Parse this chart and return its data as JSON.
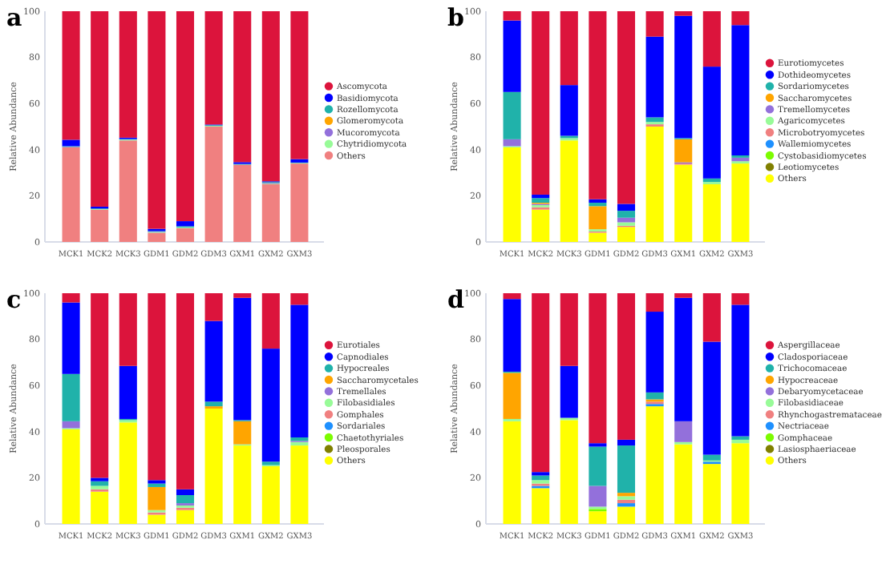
{
  "chart_data": [
    {
      "type": "bar",
      "title": "a",
      "ylabel": "Relative Abundance",
      "stacked": true,
      "legend": "right",
      "grid": false,
      "ylim": [
        0,
        100
      ],
      "yticks": [
        0,
        20,
        40,
        60,
        80,
        100
      ],
      "categories": [
        "MCK1",
        "MCK2",
        "MCK3",
        "GDM1",
        "GDM2",
        "GDM3",
        "GXM1",
        "GXM2",
        "GXM3"
      ],
      "series": [
        {
          "name": "Others",
          "color": "#f08080",
          "values": [
            41,
            14,
            44,
            4,
            6,
            50,
            33.5,
            25,
            34
          ]
        },
        {
          "name": "Chytridiomycota",
          "color": "#98fb98",
          "values": [
            0,
            0.2,
            0.3,
            0.2,
            0.3,
            0.3,
            0,
            0.3,
            0.2
          ]
        },
        {
          "name": "Mucoromycota",
          "color": "#9370db",
          "values": [
            0.2,
            0,
            0,
            0.2,
            0,
            0,
            0,
            0.4,
            0
          ]
        },
        {
          "name": "Glomeromycota",
          "color": "#ffa500",
          "values": [
            0,
            0,
            0,
            0,
            0,
            0,
            0,
            0,
            0
          ]
        },
        {
          "name": "Rozellomycota",
          "color": "#20b2aa",
          "values": [
            0.3,
            0.3,
            0.3,
            0.3,
            0.5,
            0.3,
            0.3,
            0.3,
            0.2
          ]
        },
        {
          "name": "Basidiomycota",
          "color": "#0000ff",
          "values": [
            2.8,
            0.8,
            0.6,
            1,
            2.2,
            0.3,
            0.8,
            0.3,
            1.5
          ]
        },
        {
          "name": "Ascomycota",
          "color": "#dc143c",
          "values": [
            55.7,
            84.7,
            54.8,
            94.3,
            91,
            49.1,
            65.4,
            73.7,
            64.1
          ]
        }
      ]
    },
    {
      "type": "bar",
      "title": "b",
      "ylabel": "Relative Abundance",
      "stacked": true,
      "legend": "right",
      "grid": false,
      "ylim": [
        0,
        100
      ],
      "yticks": [
        0,
        20,
        40,
        60,
        80,
        100
      ],
      "categories": [
        "MCK1",
        "MCK2",
        "MCK3",
        "GDM1",
        "GDM2",
        "GDM3",
        "GXM1",
        "GXM2",
        "GXM3"
      ],
      "series": [
        {
          "name": "Others",
          "color": "#ffff00",
          "values": [
            41,
            14,
            44,
            4,
            6.5,
            50,
            33.5,
            25,
            34
          ]
        },
        {
          "name": "Leotiomycetes",
          "color": "#808000",
          "values": [
            0,
            0,
            0,
            0,
            0,
            0,
            0,
            0,
            0
          ]
        },
        {
          "name": "Cystobasidiomycetes",
          "color": "#7cfc00",
          "values": [
            0,
            0,
            0,
            0,
            0,
            0,
            0,
            0,
            0
          ]
        },
        {
          "name": "Wallemiomycetes",
          "color": "#1e90ff",
          "values": [
            0,
            0,
            0,
            0,
            0,
            0,
            0,
            0,
            0
          ]
        },
        {
          "name": "Microbotryomycetes",
          "color": "#f08080",
          "values": [
            0,
            1,
            0,
            0.5,
            0.5,
            1,
            0.5,
            0,
            0
          ]
        },
        {
          "name": "Agaricomycetes",
          "color": "#98fb98",
          "values": [
            0.5,
            1,
            1,
            1,
            1.5,
            1,
            0,
            1,
            1
          ]
        },
        {
          "name": "Tremellomycetes",
          "color": "#9370db",
          "values": [
            3,
            0.5,
            0,
            0,
            2,
            0,
            0.5,
            0,
            1.5
          ]
        },
        {
          "name": "Saccharomycetes",
          "color": "#ffa500",
          "values": [
            0,
            0.5,
            0,
            10,
            0,
            0,
            10,
            0,
            0
          ]
        },
        {
          "name": "Sordariomycetes",
          "color": "#20b2aa",
          "values": [
            20.5,
            2,
            1,
            1.5,
            3,
            2,
            0.5,
            1.5,
            1
          ]
        },
        {
          "name": "Dothideomycetes",
          "color": "#0000ff",
          "values": [
            31,
            1.5,
            22,
            1.5,
            3,
            35,
            53,
            48.5,
            56.5
          ]
        },
        {
          "name": "Eurotiomycetes",
          "color": "#dc143c",
          "values": [
            4,
            79.5,
            32,
            81.5,
            83.5,
            11,
            2,
            24,
            6
          ]
        }
      ]
    },
    {
      "type": "bar",
      "title": "c",
      "ylabel": "Relative Abundance",
      "stacked": true,
      "legend": "right",
      "grid": false,
      "ylim": [
        0,
        100
      ],
      "yticks": [
        0,
        20,
        40,
        60,
        80,
        100
      ],
      "categories": [
        "MCK1",
        "MCK2",
        "MCK3",
        "GDM1",
        "GDM2",
        "GDM3",
        "GXM1",
        "GXM2",
        "GXM3"
      ],
      "series": [
        {
          "name": "Others",
          "color": "#ffff00",
          "values": [
            41,
            14,
            44,
            4,
            6,
            50,
            34,
            25,
            34
          ]
        },
        {
          "name": "Pleosporales",
          "color": "#808000",
          "values": [
            0,
            0,
            0,
            0,
            0,
            0,
            0,
            0,
            0
          ]
        },
        {
          "name": "Chaetothyriales",
          "color": "#7cfc00",
          "values": [
            0,
            0,
            0,
            0,
            0,
            0,
            0,
            0,
            0
          ]
        },
        {
          "name": "Sordariales",
          "color": "#1e90ff",
          "values": [
            0,
            0,
            0,
            0,
            0,
            0,
            0,
            0,
            0
          ]
        },
        {
          "name": "Gomphales",
          "color": "#f08080",
          "values": [
            0,
            1,
            0,
            1,
            1,
            0,
            0,
            0,
            0
          ]
        },
        {
          "name": "Filobasidiales",
          "color": "#98fb98",
          "values": [
            0.5,
            1.5,
            1,
            1,
            1,
            0,
            0.5,
            0.5,
            1.5
          ]
        },
        {
          "name": "Tremellales",
          "color": "#9370db",
          "values": [
            3,
            0,
            0,
            0,
            1,
            0,
            0,
            0,
            0.5
          ]
        },
        {
          "name": "Saccharomycetales",
          "color": "#ffa500",
          "values": [
            0,
            0,
            0,
            10,
            0,
            1,
            10,
            0,
            0
          ]
        },
        {
          "name": "Hypocreales",
          "color": "#20b2aa",
          "values": [
            20.5,
            2,
            0.5,
            1.5,
            3.5,
            2,
            0.5,
            1.5,
            1.5
          ]
        },
        {
          "name": "Capnodiales",
          "color": "#0000ff",
          "values": [
            31,
            1.5,
            23,
            1.5,
            2.5,
            35,
            53,
            49,
            57.5
          ]
        },
        {
          "name": "Eurotiales",
          "color": "#dc143c",
          "values": [
            4,
            80,
            31.5,
            81,
            85,
            12,
            2,
            24,
            5
          ]
        }
      ]
    },
    {
      "type": "bar",
      "title": "d",
      "ylabel": "Relative Abundance",
      "stacked": true,
      "legend": "right",
      "grid": false,
      "ylim": [
        0,
        100
      ],
      "yticks": [
        0,
        20,
        40,
        60,
        80,
        100
      ],
      "categories": [
        "MCK1",
        "MCK2",
        "MCK3",
        "GDM1",
        "GDM2",
        "GDM3",
        "GXM1",
        "GXM2",
        "GXM3"
      ],
      "series": [
        {
          "name": "Others",
          "color": "#ffff00",
          "values": [
            44.5,
            15.5,
            45,
            5.5,
            7.5,
            51,
            34.5,
            26,
            35
          ]
        },
        {
          "name": "Lasiosphaeriaceae",
          "color": "#808000",
          "values": [
            0,
            0,
            0,
            0,
            0,
            0,
            0,
            0,
            0
          ]
        },
        {
          "name": "Gomphaceae",
          "color": "#7cfc00",
          "values": [
            0,
            0,
            0,
            1,
            0,
            0,
            0,
            0,
            0
          ]
        },
        {
          "name": "Nectriaceae",
          "color": "#1e90ff",
          "values": [
            0,
            1,
            0,
            0,
            1.5,
            1,
            0,
            1,
            0
          ]
        },
        {
          "name": "Rhynchogastremataceae",
          "color": "#f08080",
          "values": [
            0,
            1,
            0,
            0,
            1.5,
            1,
            0,
            0,
            0
          ]
        },
        {
          "name": "Filobasidiaceae",
          "color": "#98fb98",
          "values": [
            1,
            1.5,
            1,
            1,
            1.5,
            0,
            1,
            0.5,
            1.5
          ]
        },
        {
          "name": "Debaryomycetaceae",
          "color": "#9370db",
          "values": [
            0,
            0,
            0,
            9,
            0,
            0,
            9,
            0,
            0
          ]
        },
        {
          "name": "Hypocreaceae",
          "color": "#ffa500",
          "values": [
            20,
            0,
            0,
            0,
            1.5,
            1,
            0,
            0,
            0
          ]
        },
        {
          "name": "Trichocomaceae",
          "color": "#20b2aa",
          "values": [
            0.5,
            2,
            0,
            17,
            20.5,
            3,
            0,
            2.5,
            1.5
          ]
        },
        {
          "name": "Cladosporiaceae",
          "color": "#0000ff",
          "values": [
            31.5,
            1.5,
            22.5,
            1.5,
            2.5,
            35,
            53.5,
            49,
            57
          ]
        },
        {
          "name": "Aspergillaceae",
          "color": "#dc143c",
          "values": [
            2.5,
            77.5,
            31.5,
            65,
            63.5,
            8,
            2,
            21,
            5
          ]
        }
      ]
    }
  ]
}
